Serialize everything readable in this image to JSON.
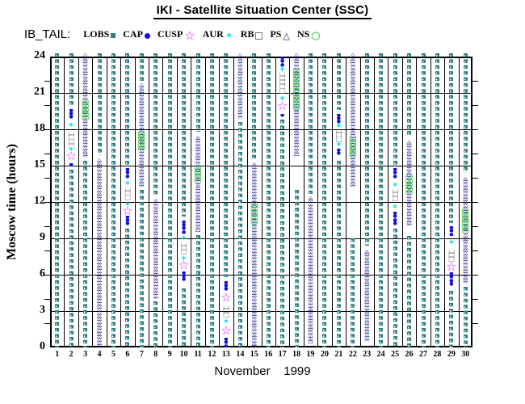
{
  "title": "IKI - Satellite Situation Center (SSC)",
  "legend": {
    "label": "IB_TAIL:",
    "items": [
      {
        "label": "LOBS",
        "symbol": "small-filled-square",
        "color": "#2f7f7f"
      },
      {
        "label": "CAP",
        "symbol": "filled-circle",
        "color": "#1010e0"
      },
      {
        "label": "CUSP",
        "symbol": "open-star",
        "color": "#ff00ff"
      },
      {
        "label": "AUR",
        "symbol": "six-point-star",
        "color": "#00dcdc"
      },
      {
        "label": "RB",
        "symbol": "open-square",
        "color": "#787878"
      },
      {
        "label": "PS",
        "symbol": "open-triangle",
        "color": "#10108c"
      },
      {
        "label": "NS",
        "symbol": "open-circle",
        "color": "#00c400"
      }
    ]
  },
  "chart_data": {
    "type": "scatter",
    "title": "IKI - Satellite Situation Center (SSC)",
    "xlabel": "November    1999",
    "ylabel": "Moscow time (hours)",
    "xlim": [
      1,
      30
    ],
    "ylim": [
      0,
      24
    ],
    "yticks": [
      0,
      3,
      6,
      9,
      12,
      15,
      18,
      21,
      24
    ],
    "xticks": [
      1,
      2,
      3,
      4,
      5,
      6,
      7,
      8,
      9,
      10,
      11,
      12,
      13,
      14,
      15,
      16,
      17,
      18,
      19,
      20,
      21,
      22,
      23,
      24,
      25,
      26,
      27,
      28,
      29,
      30
    ],
    "grid": true,
    "legend_position": "top",
    "series_meaning": "For each November 1999 day column, magnetospheric region intervals in Moscow hours: LOBS=tail lobes, CAP=polar cap, CUSP=cusp, AUR=auroral zone, RB=radiation belt, PS=plasma sheet, NS=neutral sheet",
    "days": [
      {
        "day": 1,
        "segments": [
          [
            "LOBS",
            0,
            24
          ]
        ]
      },
      {
        "day": 2,
        "segments": [
          [
            "LOBS",
            0,
            14.7
          ],
          [
            "CAP",
            14.9,
            15.2
          ],
          [
            "CUSP",
            15.5,
            16.0
          ],
          [
            "AUR",
            16.1,
            16.4
          ],
          [
            "RB",
            16.5,
            17.8
          ],
          [
            "AUR",
            18.1,
            18.5
          ],
          [
            "CAP",
            18.8,
            19.7
          ],
          [
            "LOBS",
            20.0,
            24
          ]
        ]
      },
      {
        "day": 3,
        "segments": [
          [
            "LOBS",
            0,
            15.4
          ],
          [
            "PS",
            15.7,
            24
          ],
          [
            "NS",
            18.8,
            20.5
          ]
        ]
      },
      {
        "day": 4,
        "segments": [
          [
            "PS",
            0,
            15.6
          ],
          [
            "LOBS",
            15.9,
            24
          ]
        ]
      },
      {
        "day": 5,
        "segments": [
          [
            "LOBS",
            0,
            24
          ]
        ]
      },
      {
        "day": 6,
        "segments": [
          [
            "LOBS",
            0,
            9.8
          ],
          [
            "CAP",
            10.1,
            10.9
          ],
          [
            "CUSP",
            11.0,
            11.5
          ],
          [
            "AUR",
            11.6,
            11.9
          ],
          [
            "RB",
            12.0,
            13.2
          ],
          [
            "AUR",
            13.3,
            13.6
          ],
          [
            "CAP",
            13.9,
            14.8
          ],
          [
            "LOBS",
            15.1,
            24
          ]
        ]
      },
      {
        "day": 7,
        "segments": [
          [
            "LOBS",
            0,
            13.0
          ],
          [
            "PS",
            13.2,
            21.8
          ],
          [
            "NS",
            16.3,
            17.9
          ],
          [
            "LOBS",
            22.0,
            24
          ]
        ]
      },
      {
        "day": 8,
        "segments": [
          [
            "LOBS",
            0,
            3.8
          ],
          [
            "PS",
            4.0,
            12.3
          ],
          [
            "LOBS",
            12.6,
            24
          ]
        ]
      },
      {
        "day": 9,
        "segments": [
          [
            "LOBS",
            0,
            24
          ]
        ]
      },
      {
        "day": 10,
        "segments": [
          [
            "LOBS",
            0,
            4.9
          ],
          [
            "CAP",
            5.3,
            6.3
          ],
          [
            "CUSP",
            6.5,
            7.1
          ],
          [
            "AUR",
            7.2,
            7.4
          ],
          [
            "RB",
            7.5,
            8.7
          ],
          [
            "AUR",
            8.8,
            9.1
          ],
          [
            "CAP",
            9.3,
            10.5
          ],
          [
            "LOBS",
            10.8,
            24
          ]
        ]
      },
      {
        "day": 11,
        "segments": [
          [
            "LOBS",
            0,
            9.3
          ],
          [
            "PS",
            9.5,
            17.5
          ],
          [
            "NS",
            13.6,
            15.0
          ],
          [
            "LOBS",
            17.8,
            24
          ]
        ]
      },
      {
        "day": 12,
        "segments": [
          [
            "LOBS",
            0,
            24
          ]
        ]
      },
      {
        "day": 13,
        "segments": [
          [
            "CAP",
            0,
            0.8
          ],
          [
            "CUSP",
            0.9,
            1.8
          ],
          [
            "AUR",
            1.9,
            2.2
          ],
          [
            "RB",
            2.3,
            3.5
          ],
          [
            "CUSP",
            3.7,
            4.5
          ],
          [
            "CAP",
            4.7,
            5.5
          ],
          [
            "LOBS",
            5.8,
            24
          ]
        ]
      },
      {
        "day": 14,
        "segments": [
          [
            "LOBS",
            0,
            18.6
          ],
          [
            "PS",
            18.8,
            24
          ]
        ]
      },
      {
        "day": 15,
        "segments": [
          [
            "PS",
            0,
            15.3
          ],
          [
            "NS",
            10.1,
            12.0
          ],
          [
            "LOBS",
            15.6,
            24
          ]
        ]
      },
      {
        "day": 16,
        "segments": [
          [
            "LOBS",
            0,
            24
          ]
        ]
      },
      {
        "day": 17,
        "segments": [
          [
            "LOBS",
            0,
            18.8
          ],
          [
            "CAP",
            19.0,
            19.3
          ],
          [
            "CUSP",
            19.5,
            20.3
          ],
          [
            "AUR",
            20.4,
            20.6
          ],
          [
            "RB",
            20.8,
            22.7
          ],
          [
            "AUR",
            22.8,
            23.0
          ],
          [
            "CAP",
            23.1,
            24
          ]
        ]
      },
      {
        "day": 18,
        "segments": [
          [
            "LOBS",
            0,
            13.0
          ],
          [
            "PS",
            15.8,
            24
          ],
          [
            "NS",
            19.5,
            23.1
          ]
        ]
      },
      {
        "day": 19,
        "segments": [
          [
            "PS",
            0.3,
            12.5
          ],
          [
            "LOBS",
            12.7,
            24
          ]
        ]
      },
      {
        "day": 20,
        "segments": [
          [
            "LOBS",
            0,
            24
          ]
        ]
      },
      {
        "day": 21,
        "segments": [
          [
            "LOBS",
            0,
            15.4
          ],
          [
            "CAP",
            15.8,
            16.4
          ],
          [
            "AUR",
            16.5,
            16.8
          ],
          [
            "RB",
            16.9,
            18.0
          ],
          [
            "AUR",
            18.1,
            18.3
          ],
          [
            "CAP",
            18.5,
            19.3
          ],
          [
            "LOBS",
            19.6,
            24
          ]
        ]
      },
      {
        "day": 22,
        "segments": [
          [
            "LOBS",
            0,
            9.0
          ],
          [
            "PS",
            13.2,
            24
          ],
          [
            "NS",
            15.7,
            17.5
          ]
        ]
      },
      {
        "day": 23,
        "segments": [
          [
            "PS",
            0.5,
            8.1
          ],
          [
            "LOBS",
            8.4,
            24
          ]
        ]
      },
      {
        "day": 24,
        "segments": [
          [
            "LOBS",
            0,
            24
          ]
        ]
      },
      {
        "day": 25,
        "segments": [
          [
            "LOBS",
            0,
            9.8
          ],
          [
            "CAP",
            10.1,
            11.2
          ],
          [
            "AUR",
            11.4,
            11.7
          ],
          [
            "RB",
            11.9,
            13.1
          ],
          [
            "AUR",
            13.2,
            13.5
          ],
          [
            "CAP",
            13.8,
            14.8
          ],
          [
            "LOBS",
            15.1,
            24
          ]
        ]
      },
      {
        "day": 26,
        "segments": [
          [
            "LOBS",
            0,
            9.2
          ],
          [
            "PS",
            10.0,
            17.1
          ],
          [
            "NS",
            12.7,
            14.3
          ],
          [
            "LOBS",
            17.4,
            24
          ]
        ]
      },
      {
        "day": 27,
        "segments": [
          [
            "LOBS",
            0,
            24
          ]
        ]
      },
      {
        "day": 28,
        "segments": [
          [
            "LOBS",
            0,
            24
          ]
        ]
      },
      {
        "day": 29,
        "segments": [
          [
            "LOBS",
            0,
            4.7
          ],
          [
            "CAP",
            5.0,
            6.2
          ],
          [
            "CUSP",
            6.3,
            7.0
          ],
          [
            "RB",
            7.1,
            8.1
          ],
          [
            "AUR",
            8.3,
            8.9
          ],
          [
            "CAP",
            9.2,
            10.0
          ],
          [
            "LOBS",
            10.3,
            24
          ]
        ]
      },
      {
        "day": 30,
        "segments": [
          [
            "LOBS",
            0,
            5.0
          ],
          [
            "PS",
            5.3,
            14.1
          ],
          [
            "NS",
            9.5,
            11.5
          ],
          [
            "LOBS",
            14.4,
            24
          ]
        ]
      }
    ]
  }
}
